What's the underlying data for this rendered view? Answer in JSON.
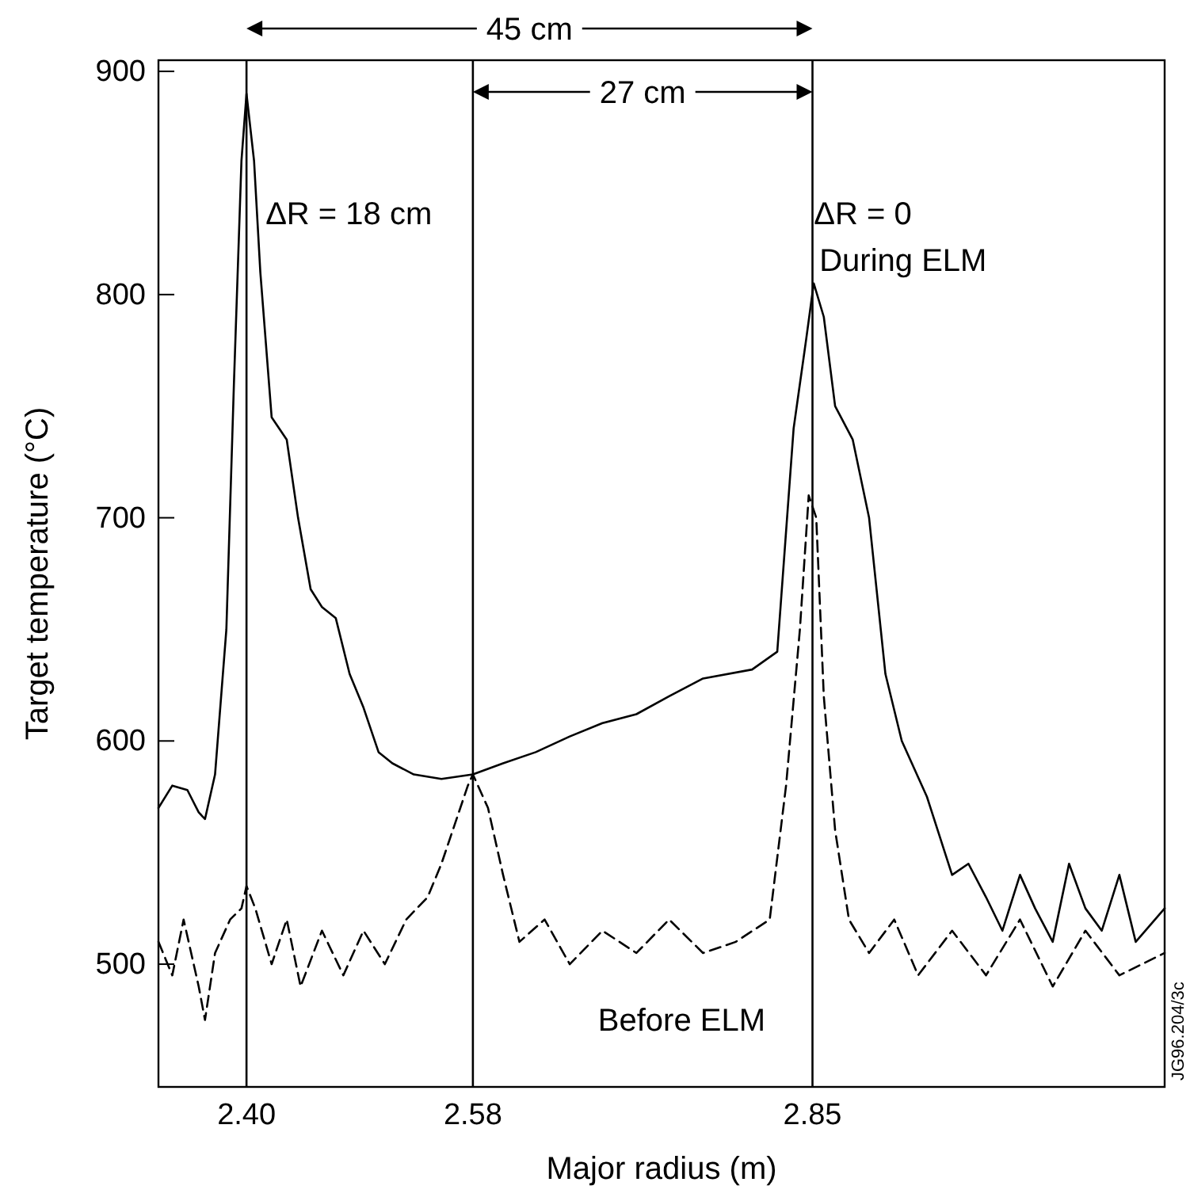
{
  "chart_data": {
    "type": "line",
    "xlabel": "Major radius (m)",
    "ylabel": "Target temperature (°C)",
    "xlim": [
      2.33,
      3.13
    ],
    "ylim": [
      445,
      905
    ],
    "xticks": [
      {
        "value": 2.4,
        "label": "2.40"
      },
      {
        "value": 2.58,
        "label": "2.58"
      },
      {
        "value": 2.85,
        "label": "2.85"
      }
    ],
    "yticks": [
      500,
      600,
      700,
      800,
      900
    ],
    "grid": false,
    "legend": false,
    "marker": "none",
    "ref_lines": [
      {
        "axis": "x",
        "value": 2.4,
        "color": "#000000"
      },
      {
        "axis": "x",
        "value": 2.58,
        "color": "#000000"
      },
      {
        "axis": "x",
        "value": 2.85,
        "color": "#000000"
      }
    ],
    "annotations": [
      "45 cm",
      "27 cm",
      "ΔR = 18 cm",
      "ΔR = 0",
      "JG96.204/3c"
    ],
    "series": [
      {
        "name": "During ELM",
        "color": "#000000",
        "line_style": "solid",
        "x": [
          2.33,
          2.341,
          2.353,
          2.362,
          2.367,
          2.375,
          2.384,
          2.39,
          2.396,
          2.4,
          2.406,
          2.411,
          2.42,
          2.432,
          2.441,
          2.451,
          2.46,
          2.471,
          2.482,
          2.493,
          2.505,
          2.516,
          2.533,
          2.555,
          2.58,
          2.604,
          2.63,
          2.657,
          2.683,
          2.71,
          2.736,
          2.763,
          2.802,
          2.822,
          2.835,
          2.845,
          2.851,
          2.859,
          2.868,
          2.882,
          2.895,
          2.908,
          2.921,
          2.941,
          2.961,
          2.974,
          2.988,
          3.001,
          3.015,
          3.027,
          3.041,
          3.054,
          3.067,
          3.08,
          3.094,
          3.107,
          3.13
        ],
        "values": [
          570,
          580,
          578,
          568,
          565,
          585,
          650,
          760,
          860,
          890,
          860,
          810,
          745,
          735,
          700,
          668,
          660,
          655,
          630,
          615,
          595,
          590,
          585,
          583,
          585,
          590,
          595,
          602,
          608,
          612,
          620,
          628,
          632,
          640,
          740,
          780,
          805,
          790,
          750,
          735,
          700,
          630,
          600,
          575,
          540,
          545,
          530,
          515,
          540,
          525,
          510,
          545,
          525,
          515,
          540,
          510,
          525
        ]
      },
      {
        "name": "Before ELM",
        "color": "#000000",
        "line_style": "dashed",
        "x": [
          2.33,
          2.341,
          2.35,
          2.362,
          2.367,
          2.375,
          2.387,
          2.396,
          2.4,
          2.407,
          2.42,
          2.432,
          2.443,
          2.46,
          2.477,
          2.493,
          2.51,
          2.527,
          2.544,
          2.555,
          2.567,
          2.576,
          2.58,
          2.592,
          2.604,
          2.617,
          2.637,
          2.657,
          2.683,
          2.71,
          2.736,
          2.763,
          2.789,
          2.816,
          2.829,
          2.84,
          2.847,
          2.853,
          2.859,
          2.868,
          2.879,
          2.895,
          2.915,
          2.934,
          2.961,
          2.988,
          3.015,
          3.041,
          3.067,
          3.094,
          3.13
        ],
        "values": [
          510,
          495,
          520,
          490,
          475,
          505,
          520,
          525,
          535,
          525,
          500,
          520,
          490,
          515,
          495,
          515,
          500,
          520,
          530,
          545,
          565,
          580,
          585,
          570,
          540,
          510,
          520,
          500,
          515,
          505,
          520,
          505,
          510,
          520,
          580,
          650,
          710,
          700,
          620,
          560,
          520,
          505,
          520,
          495,
          515,
          495,
          520,
          490,
          515,
          495,
          505
        ]
      }
    ]
  }
}
